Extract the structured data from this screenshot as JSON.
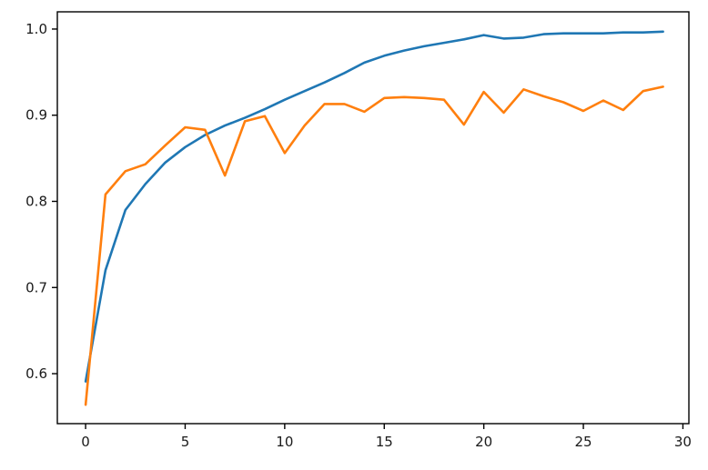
{
  "figure": {
    "background": "#ffffff",
    "axis_color": "#000000",
    "tick_label_color": "#1a1a1a"
  },
  "chart_data": {
    "type": "line",
    "title": "",
    "xlabel": "",
    "ylabel": "",
    "grid": false,
    "legend": null,
    "xlim": [
      -1.42,
      30.3
    ],
    "ylim": [
      0.542,
      1.02
    ],
    "xticks": {
      "values": [
        0,
        5,
        10,
        15,
        20,
        25,
        30
      ],
      "labels": [
        "0",
        "5",
        "10",
        "15",
        "20",
        "25",
        "30"
      ]
    },
    "yticks": {
      "values": [
        0.6,
        0.7,
        0.8,
        0.9,
        1.0
      ],
      "labels": [
        "0.6",
        "0.7",
        "0.8",
        "0.9",
        "1.0"
      ]
    },
    "x": [
      0,
      1,
      2,
      3,
      4,
      5,
      6,
      7,
      8,
      9,
      10,
      11,
      12,
      13,
      14,
      15,
      16,
      17,
      18,
      19,
      20,
      21,
      22,
      23,
      24,
      25,
      26,
      27,
      28,
      29
    ],
    "series": [
      {
        "name": "blue",
        "color": "#1f77b4",
        "line_width": 2.6,
        "values": [
          0.591,
          0.72,
          0.79,
          0.82,
          0.845,
          0.863,
          0.877,
          0.888,
          0.897,
          0.907,
          0.918,
          0.928,
          0.938,
          0.949,
          0.961,
          0.969,
          0.975,
          0.98,
          0.984,
          0.988,
          0.993,
          0.989,
          0.99,
          0.994,
          0.995,
          0.995,
          0.995,
          0.996,
          0.996,
          0.997
        ]
      },
      {
        "name": "orange",
        "color": "#ff7f0e",
        "line_width": 2.6,
        "values": [
          0.564,
          0.808,
          0.835,
          0.843,
          0.865,
          0.886,
          0.883,
          0.83,
          0.893,
          0.899,
          0.856,
          0.888,
          0.913,
          0.913,
          0.904,
          0.92,
          0.921,
          0.92,
          0.918,
          0.889,
          0.927,
          0.903,
          0.93,
          0.922,
          0.915,
          0.905,
          0.917,
          0.906,
          0.928,
          0.933
        ]
      }
    ]
  }
}
